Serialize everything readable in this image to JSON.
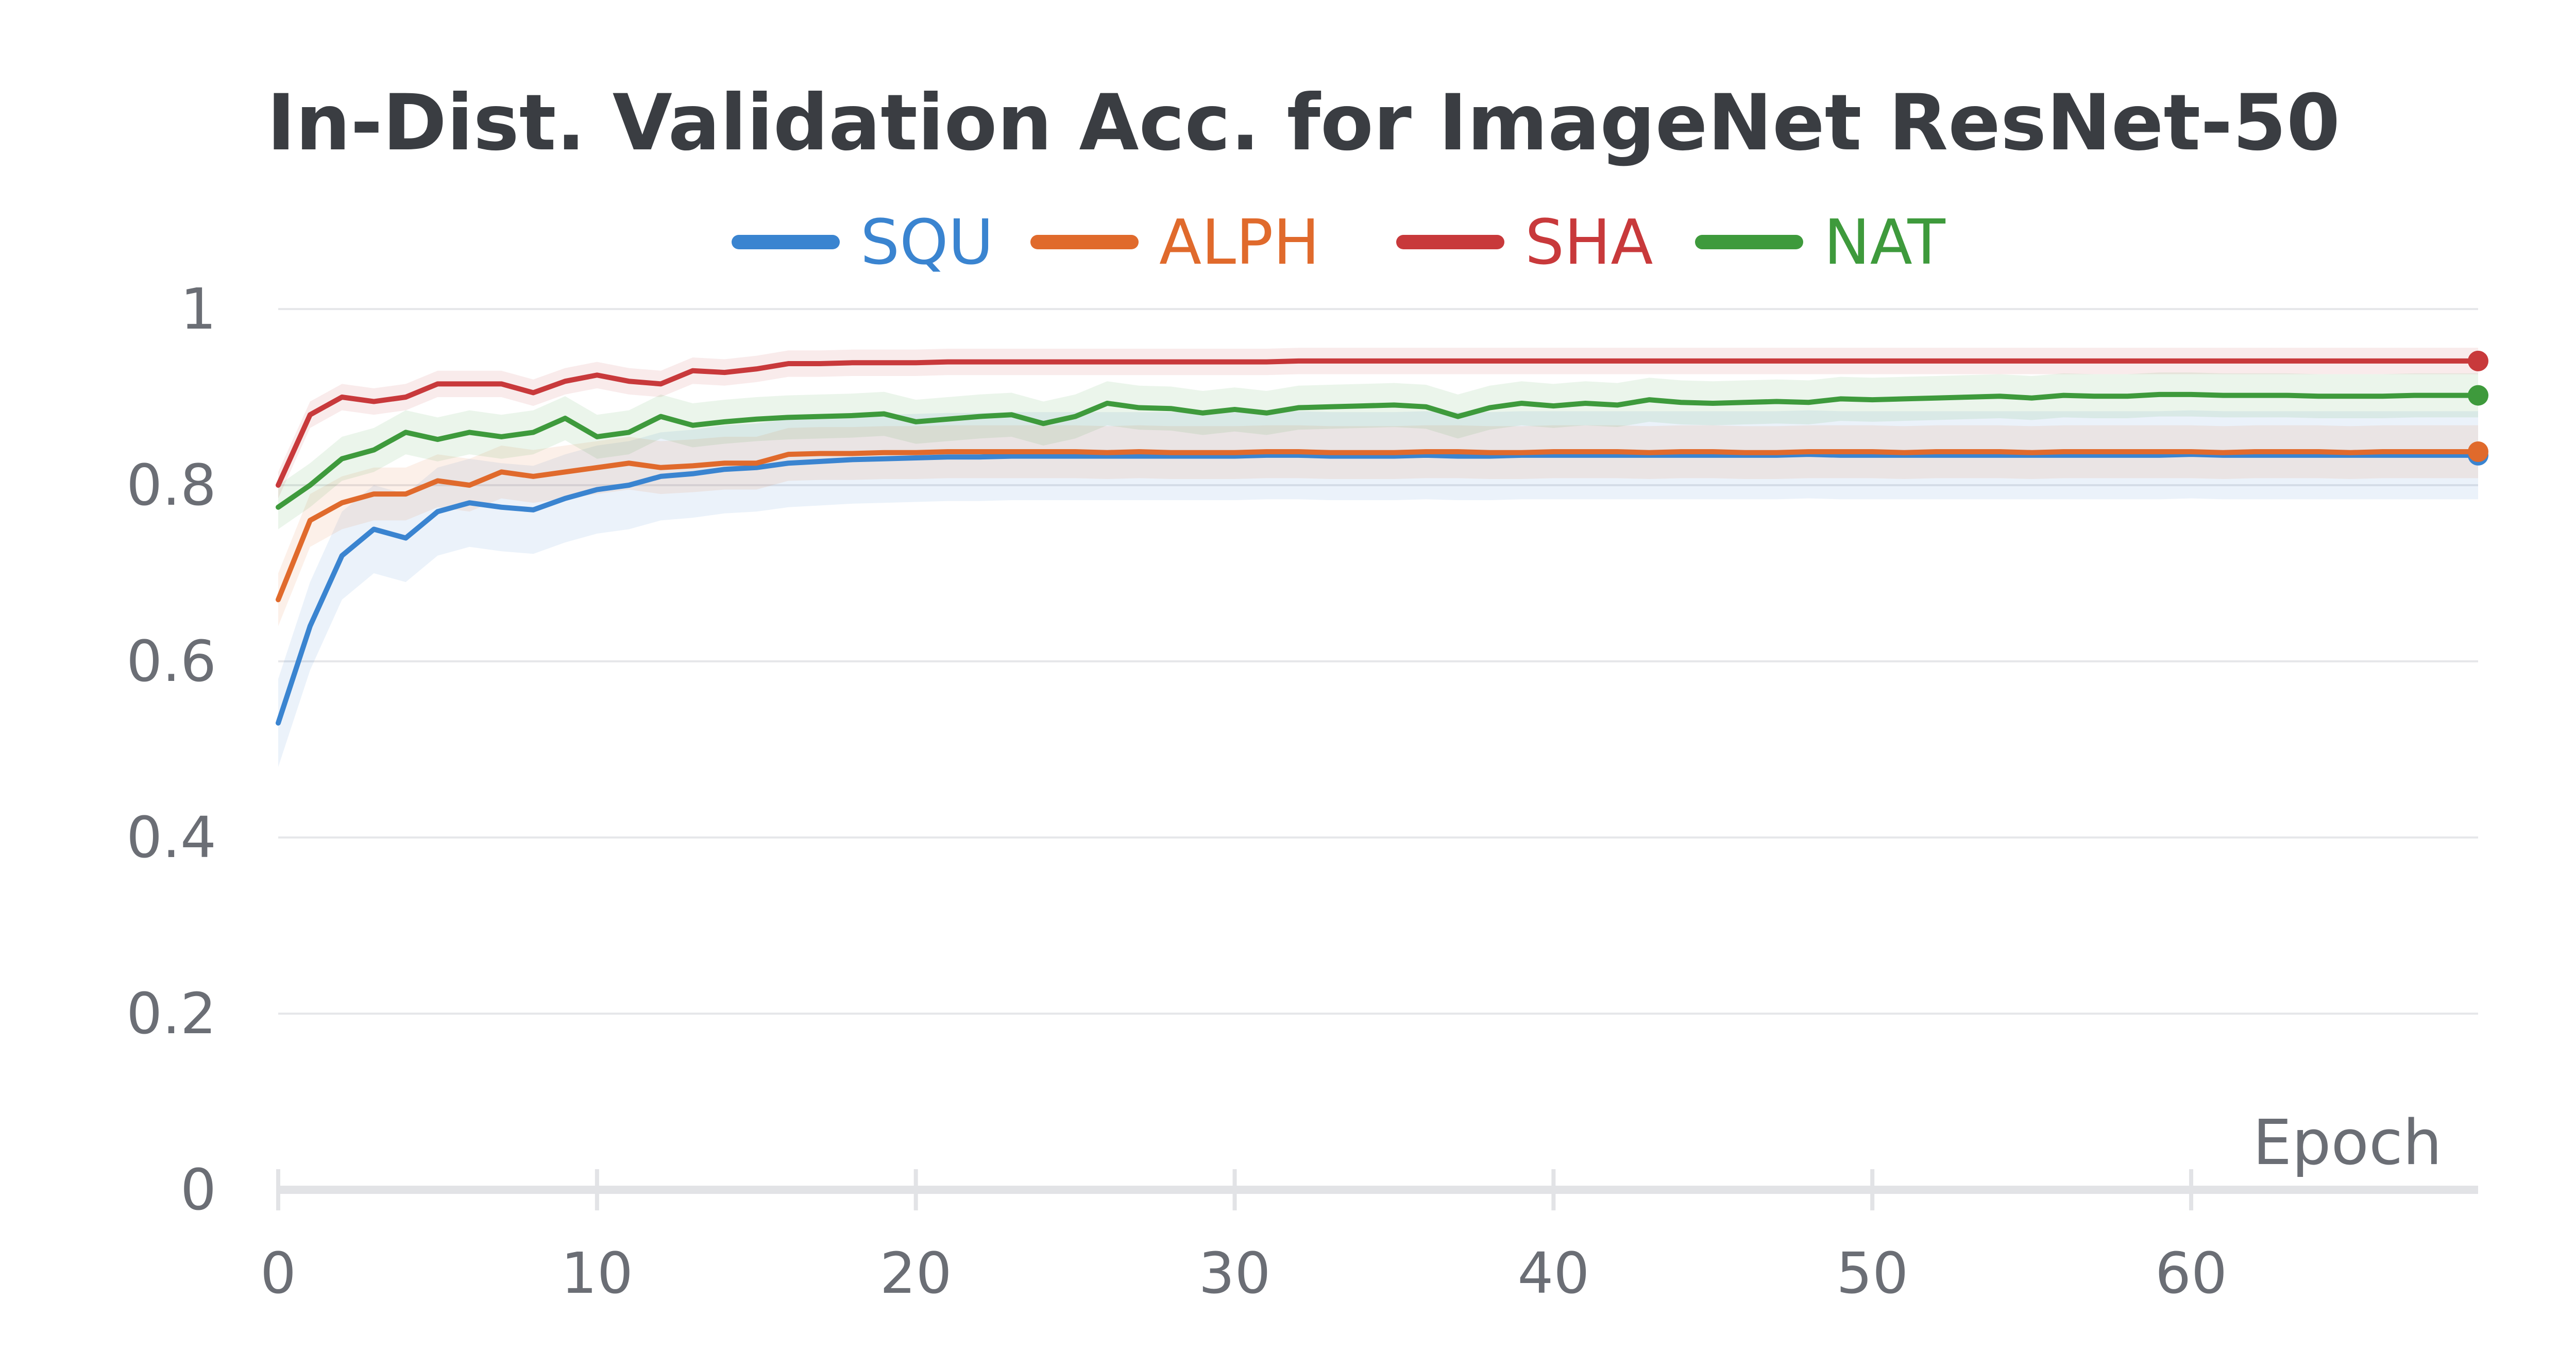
{
  "chart_data": {
    "type": "line",
    "title": "In-Dist. Validation Acc. for ImageNet ResNet-50",
    "xlabel": "Epoch",
    "ylabel": "",
    "xlim": [
      0,
      69
    ],
    "ylim": [
      0,
      1
    ],
    "xticks": [
      0,
      10,
      20,
      30,
      40,
      50,
      60
    ],
    "xtick_labels": [
      "0",
      "10",
      "20",
      "30",
      "40",
      "50",
      "60"
    ],
    "yticks": [
      0,
      0.2,
      0.4,
      0.6,
      0.8,
      1
    ],
    "ytick_labels": [
      "0",
      "0.2",
      "0.4",
      "0.6",
      "0.8",
      "1"
    ],
    "grid": true,
    "legend_position": "top-center",
    "series": [
      {
        "name": "SQU",
        "color": "#3a84d0",
        "band": 0.05,
        "values": [
          0.53,
          0.64,
          0.72,
          0.75,
          0.74,
          0.77,
          0.78,
          0.775,
          0.772,
          0.785,
          0.795,
          0.8,
          0.81,
          0.813,
          0.818,
          0.82,
          0.825,
          0.827,
          0.829,
          0.83,
          0.831,
          0.832,
          0.832,
          0.833,
          0.833,
          0.833,
          0.833,
          0.833,
          0.833,
          0.833,
          0.833,
          0.834,
          0.834,
          0.833,
          0.833,
          0.833,
          0.834,
          0.833,
          0.833,
          0.834,
          0.834,
          0.834,
          0.834,
          0.834,
          0.834,
          0.834,
          0.834,
          0.834,
          0.835,
          0.834,
          0.834,
          0.834,
          0.834,
          0.834,
          0.834,
          0.834,
          0.834,
          0.834,
          0.834,
          0.834,
          0.835,
          0.834,
          0.834,
          0.834,
          0.834,
          0.834,
          0.834,
          0.834,
          0.834,
          0.834
        ]
      },
      {
        "name": "ALPH",
        "color": "#e06a2c",
        "band": 0.03,
        "values": [
          0.67,
          0.76,
          0.78,
          0.79,
          0.79,
          0.805,
          0.8,
          0.815,
          0.81,
          0.815,
          0.82,
          0.825,
          0.82,
          0.822,
          0.825,
          0.825,
          0.835,
          0.836,
          0.836,
          0.837,
          0.837,
          0.838,
          0.838,
          0.838,
          0.838,
          0.838,
          0.837,
          0.838,
          0.837,
          0.837,
          0.837,
          0.838,
          0.838,
          0.837,
          0.837,
          0.837,
          0.838,
          0.838,
          0.837,
          0.837,
          0.838,
          0.838,
          0.838,
          0.837,
          0.838,
          0.838,
          0.837,
          0.837,
          0.838,
          0.838,
          0.838,
          0.837,
          0.838,
          0.838,
          0.838,
          0.837,
          0.838,
          0.838,
          0.838,
          0.838,
          0.838,
          0.837,
          0.838,
          0.838,
          0.838,
          0.837,
          0.838,
          0.838,
          0.838,
          0.838
        ]
      },
      {
        "name": "SHA",
        "color": "#c8393b",
        "band": 0.015,
        "values": [
          0.8,
          0.88,
          0.9,
          0.895,
          0.9,
          0.915,
          0.915,
          0.915,
          0.905,
          0.918,
          0.925,
          0.918,
          0.915,
          0.93,
          0.928,
          0.932,
          0.938,
          0.938,
          0.939,
          0.939,
          0.939,
          0.94,
          0.94,
          0.94,
          0.94,
          0.94,
          0.94,
          0.94,
          0.94,
          0.94,
          0.94,
          0.94,
          0.941,
          0.941,
          0.941,
          0.941,
          0.941,
          0.941,
          0.941,
          0.941,
          0.941,
          0.941,
          0.941,
          0.941,
          0.941,
          0.941,
          0.941,
          0.941,
          0.941,
          0.941,
          0.941,
          0.941,
          0.941,
          0.941,
          0.941,
          0.941,
          0.941,
          0.941,
          0.941,
          0.941,
          0.941,
          0.941,
          0.941,
          0.941,
          0.941,
          0.941,
          0.941,
          0.941,
          0.941,
          0.941
        ]
      },
      {
        "name": "NAT",
        "color": "#3e9a3c",
        "band": 0.025,
        "values": [
          0.775,
          0.8,
          0.83,
          0.84,
          0.86,
          0.852,
          0.86,
          0.855,
          0.86,
          0.876,
          0.855,
          0.86,
          0.878,
          0.868,
          0.872,
          0.875,
          0.877,
          0.878,
          0.879,
          0.881,
          0.872,
          0.875,
          0.878,
          0.88,
          0.87,
          0.878,
          0.893,
          0.888,
          0.887,
          0.882,
          0.886,
          0.882,
          0.888,
          0.889,
          0.89,
          0.891,
          0.889,
          0.878,
          0.888,
          0.893,
          0.89,
          0.893,
          0.891,
          0.897,
          0.894,
          0.893,
          0.894,
          0.895,
          0.894,
          0.898,
          0.897,
          0.898,
          0.899,
          0.9,
          0.901,
          0.899,
          0.902,
          0.901,
          0.901,
          0.903,
          0.903,
          0.902,
          0.902,
          0.902,
          0.901,
          0.901,
          0.901,
          0.902,
          0.902,
          0.902
        ]
      }
    ]
  }
}
